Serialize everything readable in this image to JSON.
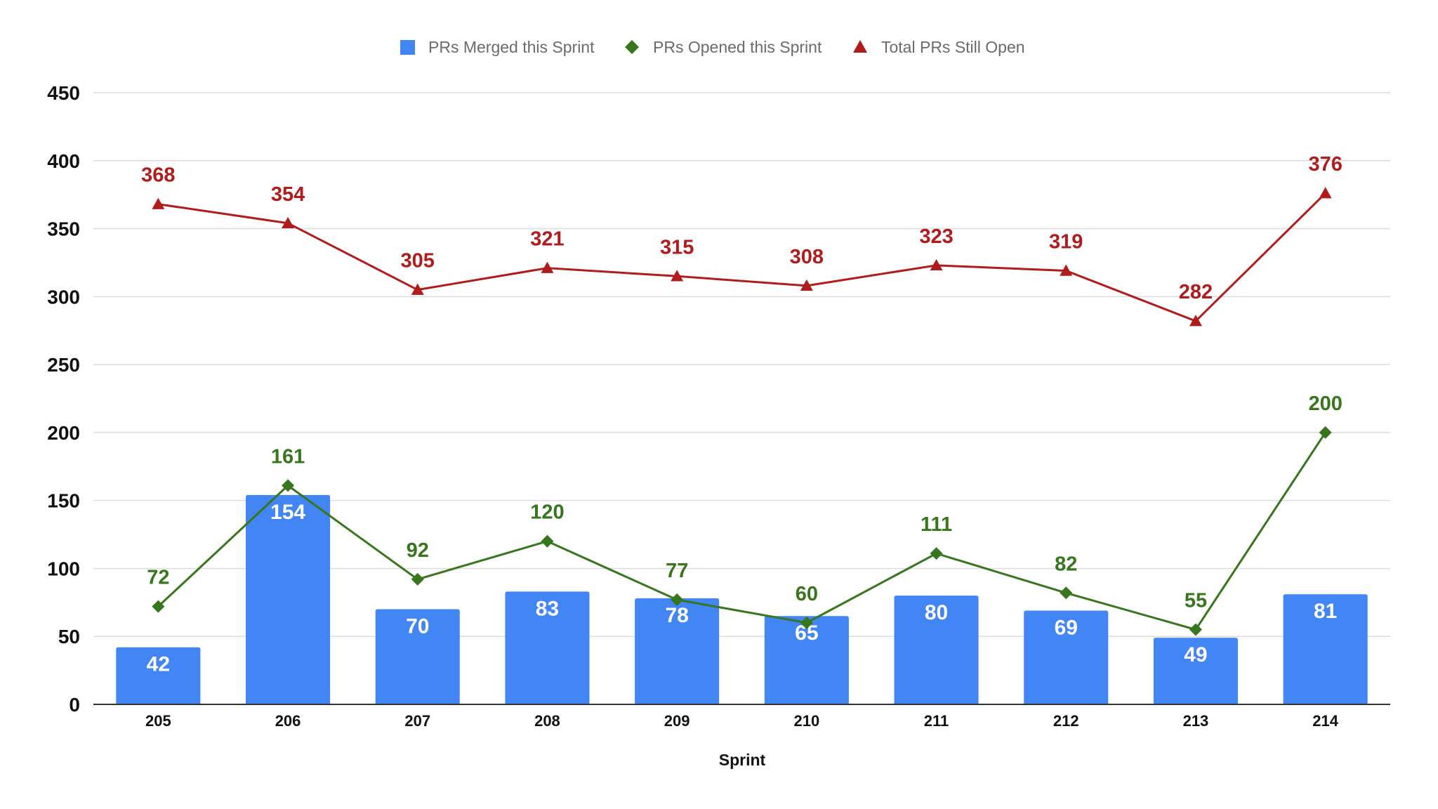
{
  "chart_data": {
    "type": "bar",
    "title": "",
    "xlabel": "Sprint",
    "ylabel": "",
    "ylim": [
      0,
      450
    ],
    "yticks": [
      0,
      50,
      100,
      150,
      200,
      250,
      300,
      350,
      400,
      450
    ],
    "grid": true,
    "legend_position": "top",
    "categories": [
      "205",
      "206",
      "207",
      "208",
      "209",
      "210",
      "211",
      "212",
      "213",
      "214"
    ],
    "series": [
      {
        "name": "PRs Merged this Sprint",
        "type": "bar",
        "marker": "square",
        "color": "#4285f4",
        "values": [
          42,
          154,
          70,
          83,
          78,
          65,
          80,
          69,
          49,
          81
        ]
      },
      {
        "name": "PRs Opened this Sprint",
        "type": "line",
        "marker": "diamond",
        "color": "#38761d",
        "values": [
          72,
          161,
          92,
          120,
          77,
          60,
          111,
          82,
          55,
          200
        ]
      },
      {
        "name": "Total PRs Still Open",
        "type": "line",
        "marker": "triangle",
        "color": "#b01c1c",
        "values": [
          368,
          354,
          305,
          321,
          315,
          308,
          323,
          319,
          282,
          376
        ]
      }
    ]
  }
}
